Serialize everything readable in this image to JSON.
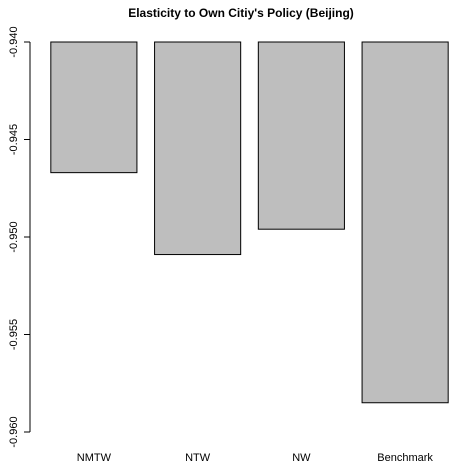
{
  "chart_data": {
    "type": "bar",
    "title": "Elasticity to Own Citiy's Policy (Beijing)",
    "xlabel": "",
    "ylabel": "",
    "categories": [
      "NMTW",
      "NTW",
      "NW",
      "Benchmark"
    ],
    "values": [
      -0.9467,
      -0.9509,
      -0.9496,
      -0.9585
    ],
    "ylim": [
      -0.96,
      -0.94
    ],
    "yticks": [
      -0.94,
      -0.945,
      -0.95,
      -0.955,
      -0.96
    ],
    "ytick_labels": [
      "-0.940",
      "-0.945",
      "-0.950",
      "-0.955",
      "-0.960"
    ],
    "grid": false,
    "legend": "none",
    "bar_color": "#bebebe",
    "bar_border_color": "#000000"
  }
}
